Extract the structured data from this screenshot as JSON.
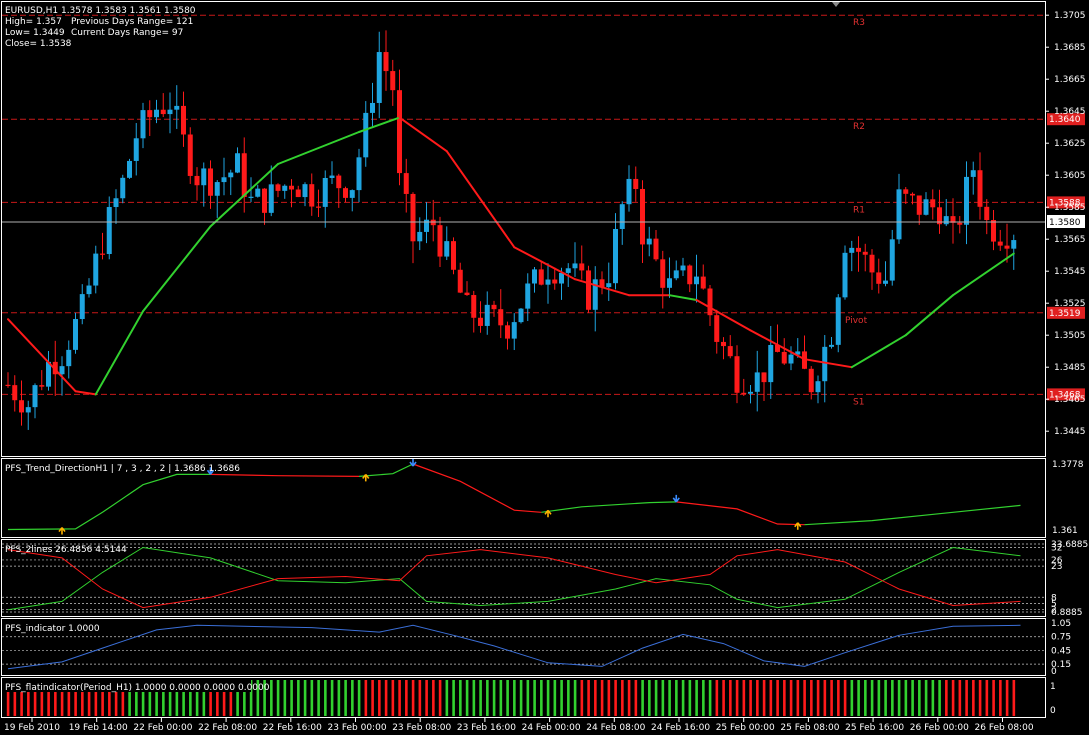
{
  "header": {
    "line1": "EURUSD,H1  1.3578 1.3583 1.3561 1.3580",
    "line2a": "High= 1.357",
    "line2b": "Previous Days Range= 121",
    "line3a": "Low= 1.3449",
    "line3b": "Current Days Range= 97",
    "line4": "Close= 1.3538"
  },
  "colors": {
    "background": "#000000",
    "frame": "#ffffff",
    "bull": "#1fa5e0",
    "bear": "#ff1a1a",
    "ma_green": "#32d12f",
    "ma_red": "#ff1a1a",
    "level_line": "#c81818",
    "price_line": "#b0b0b0",
    "blue_line": "#3b6fd8",
    "arrow_up": "#ffb300",
    "arrow_down": "#3b8cff"
  },
  "main": {
    "price_axis": [
      "1.3705",
      "1.3685",
      "1.3665",
      "1.3645",
      "1.3625",
      "1.3605",
      "1.3585",
      "1.3565",
      "1.3545",
      "1.3525",
      "1.3505",
      "1.3485",
      "1.3465",
      "1.3445"
    ],
    "current_price": "1.3580",
    "levels": [
      {
        "name": "R3",
        "value": "1.3705",
        "show_box": false
      },
      {
        "name": "R2",
        "value": "1.3640",
        "show_box": true
      },
      {
        "name": "R1",
        "value": "1.3588",
        "show_box": true
      },
      {
        "name": "Pivot",
        "value": "1.3519",
        "show_box": true
      },
      {
        "name": "S1",
        "value": "1.3468",
        "show_box": true
      }
    ]
  },
  "chart_data": [
    {
      "type": "candlestick",
      "title": "EURUSD,H1",
      "ylim": [
        1.3432,
        1.3712
      ],
      "candle_count": 150,
      "price_path": [
        [
          0,
          1.3474
        ],
        [
          3,
          1.3462
        ],
        [
          6,
          1.3487
        ],
        [
          8,
          1.3494
        ],
        [
          11,
          1.352
        ],
        [
          14,
          1.3565
        ],
        [
          17,
          1.36
        ],
        [
          19,
          1.363
        ],
        [
          22,
          1.3647
        ],
        [
          24,
          1.3651
        ],
        [
          26,
          1.3625
        ],
        [
          28,
          1.3605
        ],
        [
          31,
          1.3602
        ],
        [
          34,
          1.361
        ],
        [
          36,
          1.3588
        ],
        [
          39,
          1.3592
        ],
        [
          42,
          1.3602
        ],
        [
          45,
          1.3594
        ],
        [
          48,
          1.36
        ],
        [
          51,
          1.36
        ],
        [
          53,
          1.3635
        ],
        [
          55,
          1.3682
        ],
        [
          57,
          1.366
        ],
        [
          58,
          1.36
        ],
        [
          60,
          1.3565
        ],
        [
          63,
          1.3575
        ],
        [
          66,
          1.3542
        ],
        [
          68,
          1.352
        ],
        [
          71,
          1.3515
        ],
        [
          74,
          1.3512
        ],
        [
          77,
          1.3532
        ],
        [
          80,
          1.3548
        ],
        [
          83,
          1.3547
        ],
        [
          86,
          1.353
        ],
        [
          89,
          1.3545
        ],
        [
          91,
          1.3585
        ],
        [
          93,
          1.36
        ],
        [
          94,
          1.357
        ],
        [
          96,
          1.355
        ],
        [
          98,
          1.3535
        ],
        [
          100,
          1.354
        ],
        [
          102,
          1.3545
        ],
        [
          105,
          1.3505
        ],
        [
          108,
          1.348
        ],
        [
          111,
          1.3478
        ],
        [
          114,
          1.3493
        ],
        [
          116,
          1.349
        ],
        [
          119,
          1.3475
        ],
        [
          122,
          1.3508
        ],
        [
          124,
          1.3565
        ],
        [
          126,
          1.3558
        ],
        [
          128,
          1.3545
        ],
        [
          130,
          1.354
        ],
        [
          132,
          1.359
        ],
        [
          135,
          1.3585
        ],
        [
          138,
          1.3585
        ],
        [
          140,
          1.3565
        ],
        [
          143,
          1.361
        ],
        [
          145,
          1.3575
        ],
        [
          147,
          1.357
        ]
      ],
      "moving_average": [
        {
          "i": 0,
          "v": 1.3515,
          "c": "red"
        },
        {
          "i": 10,
          "v": 1.347,
          "c": "red"
        },
        {
          "i": 13,
          "v": 1.3468,
          "c": "green"
        },
        {
          "i": 20,
          "v": 1.352,
          "c": "green"
        },
        {
          "i": 30,
          "v": 1.3573,
          "c": "green"
        },
        {
          "i": 40,
          "v": 1.3612,
          "c": "green"
        },
        {
          "i": 52,
          "v": 1.3632,
          "c": "green"
        },
        {
          "i": 58,
          "v": 1.3641,
          "c": "red"
        },
        {
          "i": 65,
          "v": 1.362,
          "c": "red"
        },
        {
          "i": 75,
          "v": 1.356,
          "c": "red"
        },
        {
          "i": 84,
          "v": 1.354,
          "c": "red"
        },
        {
          "i": 92,
          "v": 1.353,
          "c": "red"
        },
        {
          "i": 98,
          "v": 1.353,
          "c": "green"
        },
        {
          "i": 102,
          "v": 1.3527,
          "c": "red"
        },
        {
          "i": 110,
          "v": 1.3508,
          "c": "red"
        },
        {
          "i": 118,
          "v": 1.349,
          "c": "red"
        },
        {
          "i": 125,
          "v": 1.3485,
          "c": "green"
        },
        {
          "i": 133,
          "v": 1.3505,
          "c": "green"
        },
        {
          "i": 140,
          "v": 1.353,
          "c": "green"
        },
        {
          "i": 149,
          "v": 1.3556,
          "c": "green"
        }
      ],
      "x_tick_labels": [
        "19 Feb 2010",
        "19 Feb 14:00",
        "22 Feb 00:00",
        "22 Feb 08:00",
        "22 Feb 16:00",
        "23 Feb 00:00",
        "23 Feb 08:00",
        "23 Feb 16:00",
        "24 Feb 00:00",
        "24 Feb 08:00",
        "24 Feb 16:00",
        "25 Feb 00:00",
        "25 Feb 08:00",
        "25 Feb 16:00",
        "26 Feb 00:00",
        "26 Feb 08:00"
      ]
    },
    {
      "type": "line",
      "title": "PFS_Trend_DirectionH1 | 7 , 3 , 2 , 2 | 1.3686 1.3686",
      "axis_labels": [
        "1.3778",
        "1.361"
      ],
      "ylim": [
        0,
        1
      ],
      "segments": [
        {
          "color": "green",
          "points": [
            [
              0,
              0.05
            ],
            [
              10,
              0.06
            ],
            [
              14,
              0.3
            ],
            [
              20,
              0.7
            ],
            [
              25,
              0.85
            ],
            [
              30,
              0.85
            ]
          ]
        },
        {
          "color": "red",
          "points": [
            [
              30,
              0.85
            ],
            [
              40,
              0.83
            ],
            [
              52,
              0.82
            ]
          ]
        },
        {
          "color": "green",
          "points": [
            [
              52,
              0.82
            ],
            [
              57,
              0.86
            ],
            [
              60,
              1.0
            ]
          ]
        },
        {
          "color": "red",
          "points": [
            [
              60,
              1.0
            ],
            [
              67,
              0.75
            ],
            [
              75,
              0.33
            ],
            [
              79,
              0.3
            ]
          ]
        },
        {
          "color": "green",
          "points": [
            [
              79,
              0.3
            ],
            [
              85,
              0.38
            ],
            [
              95,
              0.44
            ],
            [
              99,
              0.45
            ]
          ]
        },
        {
          "color": "red",
          "points": [
            [
              99,
              0.45
            ],
            [
              108,
              0.35
            ],
            [
              114,
              0.13
            ],
            [
              118,
              0.12
            ]
          ]
        },
        {
          "color": "green",
          "points": [
            [
              118,
              0.12
            ],
            [
              128,
              0.18
            ],
            [
              138,
              0.28
            ],
            [
              150,
              0.4
            ]
          ]
        }
      ],
      "arrows": [
        {
          "i": 8,
          "dir": "up",
          "v": 0.05
        },
        {
          "i": 30,
          "dir": "down",
          "v": 0.88
        },
        {
          "i": 53,
          "dir": "up",
          "v": 0.82
        },
        {
          "i": 60,
          "dir": "down",
          "v": 1.0
        },
        {
          "i": 80,
          "dir": "up",
          "v": 0.3
        },
        {
          "i": 99,
          "dir": "down",
          "v": 0.48
        },
        {
          "i": 117,
          "dir": "up",
          "v": 0.12
        }
      ]
    },
    {
      "type": "line",
      "title": "PFS_2lines 26.4856 4.5144",
      "axis_labels": [
        "33.6885",
        "32",
        "26",
        "23",
        "8",
        "5",
        "2",
        "0.8885"
      ],
      "ylim": [
        0.8885,
        33.6885
      ],
      "series": [
        {
          "color": "green",
          "points": [
            [
              0,
              2
            ],
            [
              8,
              6
            ],
            [
              14,
              20
            ],
            [
              20,
              32
            ],
            [
              30,
              27
            ],
            [
              40,
              16
            ],
            [
              50,
              15
            ],
            [
              58,
              17
            ],
            [
              62,
              6
            ],
            [
              70,
              4
            ],
            [
              80,
              6
            ],
            [
              90,
              12
            ],
            [
              96,
              17
            ],
            [
              104,
              14
            ],
            [
              108,
              7
            ],
            [
              114,
              3
            ],
            [
              124,
              7
            ],
            [
              132,
              20
            ],
            [
              140,
              32
            ],
            [
              150,
              28
            ]
          ]
        },
        {
          "color": "red",
          "points": [
            [
              0,
              31
            ],
            [
              8,
              27
            ],
            [
              14,
              12
            ],
            [
              20,
              3
            ],
            [
              30,
              8
            ],
            [
              40,
              17
            ],
            [
              50,
              18
            ],
            [
              58,
              16
            ],
            [
              62,
              28
            ],
            [
              70,
              31
            ],
            [
              80,
              27
            ],
            [
              90,
              19
            ],
            [
              96,
              15
            ],
            [
              104,
              19
            ],
            [
              108,
              28
            ],
            [
              114,
              31
            ],
            [
              124,
              25
            ],
            [
              132,
              12
            ],
            [
              140,
              4
            ],
            [
              150,
              6
            ]
          ]
        }
      ]
    },
    {
      "type": "line",
      "title": "PFS_indicator 1.0000",
      "axis_labels": [
        "1.05",
        "0.75",
        "0.45",
        "0.15",
        "0"
      ],
      "ylim": [
        0,
        1.05
      ],
      "series": [
        {
          "color": "blue",
          "points": [
            [
              0,
              0.05
            ],
            [
              8,
              0.2
            ],
            [
              14,
              0.5
            ],
            [
              22,
              0.9
            ],
            [
              28,
              1.0
            ],
            [
              45,
              0.95
            ],
            [
              55,
              0.85
            ],
            [
              60,
              1.0
            ],
            [
              66,
              0.78
            ],
            [
              72,
              0.55
            ],
            [
              80,
              0.18
            ],
            [
              88,
              0.1
            ],
            [
              94,
              0.5
            ],
            [
              100,
              0.8
            ],
            [
              106,
              0.6
            ],
            [
              112,
              0.22
            ],
            [
              118,
              0.1
            ],
            [
              124,
              0.4
            ],
            [
              132,
              0.78
            ],
            [
              140,
              0.98
            ],
            [
              150,
              1.0
            ]
          ]
        }
      ]
    },
    {
      "type": "bar",
      "title": "PFS_flatindicator(Period_H1) 1.0000 0.0000 0.0000 0.0000",
      "axis_labels": [
        "1",
        "0"
      ],
      "ylim": [
        0,
        1
      ],
      "color_runs": [
        {
          "from": 0,
          "to": 17,
          "color": "red"
        },
        {
          "from": 18,
          "to": 29,
          "color": "green"
        },
        {
          "from": 30,
          "to": 33,
          "color": "red"
        },
        {
          "from": 34,
          "to": 52,
          "color": "green"
        },
        {
          "from": 53,
          "to": 64,
          "color": "red"
        },
        {
          "from": 65,
          "to": 84,
          "color": "green"
        },
        {
          "from": 85,
          "to": 93,
          "color": "red"
        },
        {
          "from": 94,
          "to": 104,
          "color": "green"
        },
        {
          "from": 105,
          "to": 124,
          "color": "red"
        },
        {
          "from": 125,
          "to": 138,
          "color": "green"
        },
        {
          "from": 139,
          "to": 149,
          "color": "red"
        }
      ]
    }
  ]
}
